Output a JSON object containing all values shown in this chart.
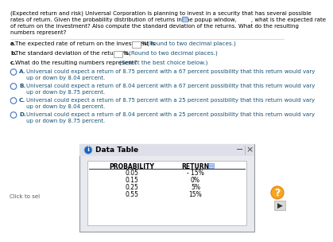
{
  "title_lines": [
    "(Expected return and risk) Universal Corporation is planning to invest in a security that has several possible",
    "rates of return. Given the probability distribution of returns in the popup window,        , what is the expected rate",
    "of return on the investment? Also compute the standard deviation of the returns. What do the resulting",
    "numbers represent?"
  ],
  "qa_prefix": "a. The expected rate of return on the investment is",
  "qa_suffix": "%. (Round to two decimal places.)",
  "qb_prefix": "b. The standard deviation of the returns is",
  "qb_suffix": "%. (Round to two decimal places.)",
  "qc_text": "c. What do the resulting numbers represent?",
  "qc_suffix": "(Select the best choice below.)",
  "options": [
    [
      "A.",
      "Universal could expect a return of 8.75 percent with a 67 percent possibility that this return would vary",
      "up or down by 8.04 percent."
    ],
    [
      "B.",
      "Universal could expect a return of 8.04 percent with a 67 percent possibility that this return would vary",
      "up or down by 8.75 percent."
    ],
    [
      "C.",
      "Universal could expect a return of 8.75 percent with a 25 percent possibility that this return would vary",
      "up or down by 8.04 percent."
    ],
    [
      "D.",
      "Universal could expect a return of 8.04 percent with a 25 percent possibility that this return would vary",
      "up or down by 8.75 percent."
    ]
  ],
  "data_table_title": "Data Table",
  "table_headers": [
    "PROBABILITY",
    "RETURN"
  ],
  "table_rows": [
    [
      "0.05",
      "- 15%"
    ],
    [
      "0.15",
      "0%"
    ],
    [
      "0.25",
      "5%"
    ],
    [
      "0.55",
      "15%"
    ]
  ],
  "click_to_sel": "Click to sel",
  "bg_color": "#ffffff",
  "text_color": "#000000",
  "bold_color": "#000000",
  "blue_color": "#1a5276",
  "link_color": "#1a5276",
  "dialog_bg": "#e8eaf0",
  "dialog_title_bg": "#dde0e8",
  "dialog_inner_bg": "#ffffff",
  "info_icon_color": "#1565c0",
  "option_letter_color": "#1a5276",
  "radio_color": "#4472c4",
  "separator_color": "#cccccc",
  "grid_icon_color": "#4472c4",
  "grid_icon_bg": "#ddeeff"
}
